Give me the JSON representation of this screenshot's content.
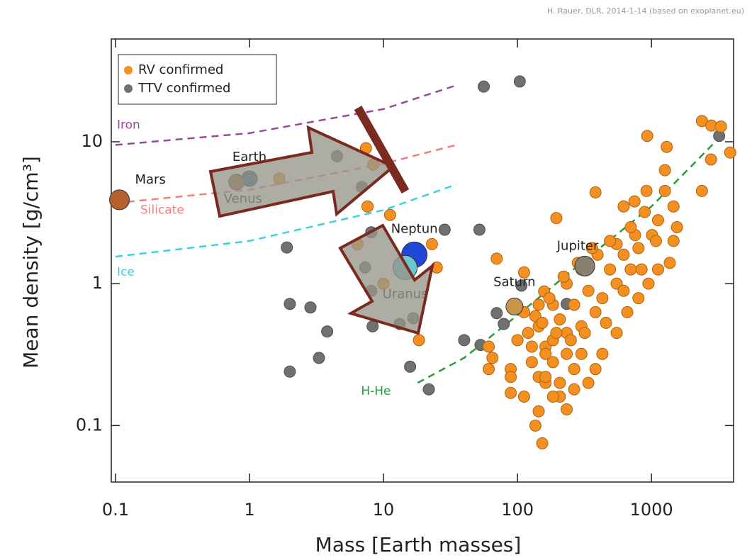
{
  "chart_data": {
    "type": "scatter",
    "credit": "H. Rauer, DLR, 2014-1-14 (based on exoplanet.eu)",
    "xlabel": "Mass [Earth masses]",
    "ylabel": "Mean density [g/cm³]",
    "xscale": "log",
    "yscale": "log",
    "xlim": [
      0.093,
      4100
    ],
    "ylim": [
      0.04,
      53
    ],
    "xticks": [
      0.1,
      1,
      10,
      100,
      1000
    ],
    "yticks": [
      0.1,
      1,
      10
    ],
    "legend": "upper left",
    "series": [
      {
        "name": "RV confirmed",
        "color": "#f39021",
        "x": [
          7.4,
          8.4,
          1.67,
          7.6,
          11.2,
          23,
          6.4,
          25,
          18.4,
          10,
          70,
          112,
          158,
          195,
          382,
          930,
          1300,
          2380,
          2800,
          3300,
          2780,
          3870,
          2380,
          1260,
          1260,
          620,
          890,
          1120,
          755,
          550,
          396,
          300,
          233,
          184,
          144,
          162,
          128,
          89,
          65,
          61,
          89,
          144,
          153,
          207,
          265,
          338,
          430,
          550,
          660,
          800,
          950,
          1120,
          1370,
          300,
          382,
          233,
          184,
          144,
          112,
          430,
          550,
          700,
          490,
          338,
          265,
          207,
          184,
          233,
          300,
          382,
          265,
          207,
          162,
          128,
          100,
          620,
          800,
          1010,
          1460,
          700,
          490,
          360,
          282,
          221,
          173,
          136,
          120,
          153,
          195,
          250,
          318,
          458,
          620,
          843,
          1080,
          1460,
          1550,
          918,
          747,
          162,
          184,
          233,
          136,
          162,
          61,
          89,
          112,
          144
        ],
        "values": [
          9.0,
          6.9,
          5.5,
          3.5,
          3.05,
          1.9,
          1.9,
          1.3,
          0.4,
          1.0,
          1.5,
          1.2,
          0.88,
          2.9,
          4.4,
          11,
          9.2,
          14,
          13,
          12.8,
          7.5,
          8.4,
          4.5,
          6.3,
          4.5,
          3.5,
          3.2,
          2.8,
          2.2,
          1.9,
          1.6,
          1.26,
          1.0,
          0.71,
          0.5,
          0.36,
          0.28,
          0.25,
          0.3,
          0.25,
          0.17,
          0.126,
          0.075,
          0.16,
          0.18,
          0.2,
          0.32,
          0.45,
          0.63,
          0.79,
          1.0,
          1.26,
          1.4,
          0.5,
          0.63,
          0.45,
          0.28,
          0.22,
          0.16,
          0.79,
          1.0,
          1.26,
          1.26,
          0.89,
          0.71,
          0.56,
          0.4,
          0.32,
          0.32,
          0.25,
          0.25,
          0.2,
          0.2,
          0.36,
          0.4,
          1.6,
          1.78,
          2.2,
          3.5,
          2.5,
          2.0,
          1.78,
          1.4,
          1.12,
          0.79,
          0.59,
          0.45,
          0.53,
          0.45,
          0.4,
          0.45,
          0.53,
          0.89,
          1.26,
          2.0,
          2.0,
          2.5,
          4.5,
          3.8,
          0.32,
          0.16,
          0.13,
          0.1,
          0.22,
          0.36,
          0.22,
          0.63,
          0.71
        ]
      },
      {
        "name": "TTV confirmed",
        "color": "#707070",
        "x": [
          56,
          104,
          4.5,
          6.9,
          1.9,
          2.0,
          2.85,
          3.8,
          3.3,
          2.0,
          8.3,
          7.3,
          8.1,
          8.1,
          13.2,
          16.7,
          15.8,
          21.8,
          28.6,
          52,
          40,
          53,
          70,
          79,
          107,
          233,
          3200
        ],
        "values": [
          24.5,
          26.6,
          7.9,
          4.8,
          1.8,
          0.72,
          0.68,
          0.46,
          0.3,
          0.24,
          0.5,
          1.3,
          0.89,
          2.3,
          0.52,
          0.57,
          0.26,
          0.18,
          2.4,
          2.4,
          0.4,
          0.37,
          0.62,
          0.52,
          0.97,
          0.72,
          11
        ]
      }
    ],
    "curves": [
      {
        "name": "Iron",
        "color": "#9b4a9b",
        "x": [
          0.1,
          1,
          10,
          35
        ],
        "values": [
          9.5,
          11.5,
          17,
          25
        ]
      },
      {
        "name": "Silicate",
        "color": "#f08080",
        "x": [
          0.1,
          1,
          10,
          35
        ],
        "values": [
          3.7,
          4.6,
          7,
          9.5
        ]
      },
      {
        "name": "Ice",
        "color": "#3fd0e0",
        "x": [
          0.1,
          1,
          10,
          35
        ],
        "values": [
          1.55,
          2.0,
          3.3,
          5
        ]
      },
      {
        "name": "H-He",
        "color": "#2a9a3a",
        "x": [
          18,
          40,
          100,
          300,
          1000,
          3000
        ],
        "values": [
          0.2,
          0.3,
          0.6,
          1.4,
          3.5,
          10
        ]
      }
    ],
    "planets": [
      {
        "label": "Mars",
        "x": 0.107,
        "y": 3.9,
        "color": "#b5602f"
      },
      {
        "label": "Earth",
        "x": 1,
        "y": 5.5,
        "color": "#3a5a8c"
      },
      {
        "label": "Venus",
        "x": 0.8,
        "y": 5.2,
        "color": "#9a6a3a"
      },
      {
        "label": "Neptun",
        "x": 17,
        "y": 1.6,
        "color": "#2246d8"
      },
      {
        "label": "Uranus",
        "x": 14.5,
        "y": 1.3,
        "color": "#6cc8d0"
      },
      {
        "label": "Saturn",
        "x": 95,
        "y": 0.69,
        "color": "#c8944a"
      },
      {
        "label": "Jupiter",
        "x": 318,
        "y": 1.33,
        "color": "#8a8070"
      }
    ]
  }
}
